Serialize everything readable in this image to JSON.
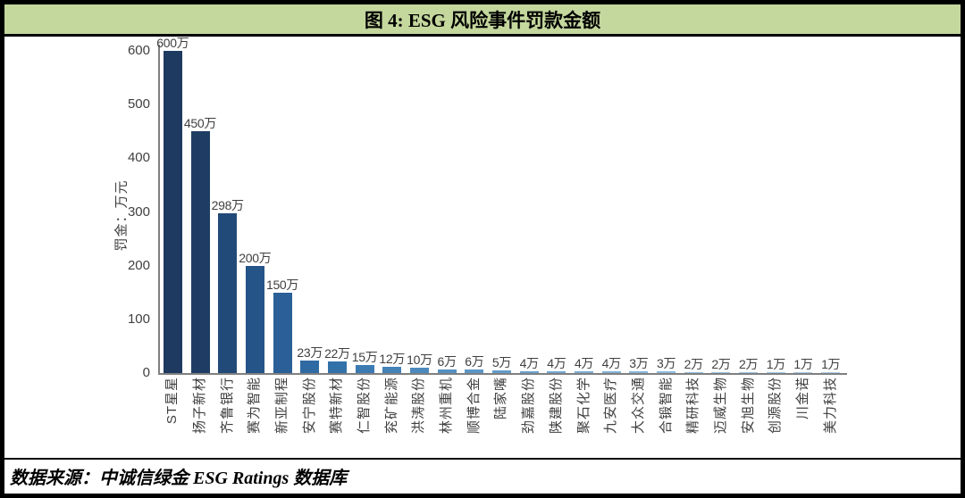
{
  "title": "图 4: ESG 风险事件罚款金额",
  "source": "数据来源：中诚信绿金 ESG Ratings 数据库",
  "colors": {
    "title_bar_background": "#c4d79d",
    "border": "#000000",
    "axis_line": "#808080",
    "tick_text": "#404040",
    "value_label_text": "#3f3f3f",
    "bar_colors": [
      "#1E3A60",
      "#1F3D64",
      "#224A78",
      "#255489",
      "#2A5F97",
      "#2F6AA3",
      "#3372A9",
      "#3C7BB2",
      "#4482B8",
      "#4C89BD",
      "#5490C2",
      "#5C96C6",
      "#649CCA",
      "#6CA2CE",
      "#73A7D1",
      "#7AACD4",
      "#81B1D7",
      "#88B5DA",
      "#8EB9DC",
      "#94BDDF",
      "#9AC1E1",
      "#A0C4E3",
      "#A5C8E5",
      "#AACBE7",
      "#AFCEE9"
    ]
  },
  "chart_data": {
    "type": "bar",
    "title": "图 4: ESG 风险事件罚款金额",
    "xlabel": "",
    "ylabel": "罚金：万元",
    "ylim": [
      0,
      600
    ],
    "yticks": [
      0,
      100,
      200,
      300,
      400,
      500,
      600
    ],
    "grid": false,
    "legend": false,
    "categories": [
      "ST星星",
      "扬子新材",
      "齐鲁银行",
      "赛为智能",
      "新亚制程",
      "安宁股份",
      "赛特新材",
      "仁智股份",
      "兖矿能源",
      "洪涛股份",
      "林州重机",
      "顺博合金",
      "陆家嘴",
      "劲嘉股份",
      "陕建股份",
      "聚石化学",
      "九安医疗",
      "大众交通",
      "合锻智能",
      "精研科技",
      "迈威生物",
      "安旭生物",
      "创源股份",
      "川金诺",
      "美力科技"
    ],
    "values": [
      600,
      450,
      298,
      200,
      150,
      23,
      22,
      15,
      12,
      10,
      6,
      6,
      5,
      4,
      4,
      4,
      4,
      3,
      3,
      2,
      2,
      2,
      1,
      1,
      1
    ],
    "value_labels": [
      "600万",
      "450万",
      "298万",
      "200万",
      "150万",
      "23万",
      "22万",
      "15万",
      "12万",
      "10万",
      "6万",
      "6万",
      "5万",
      "4万",
      "4万",
      "4万",
      "4万",
      "3万",
      "3万",
      "2万",
      "2万",
      "2万",
      "1万",
      "1万",
      "1万"
    ]
  }
}
